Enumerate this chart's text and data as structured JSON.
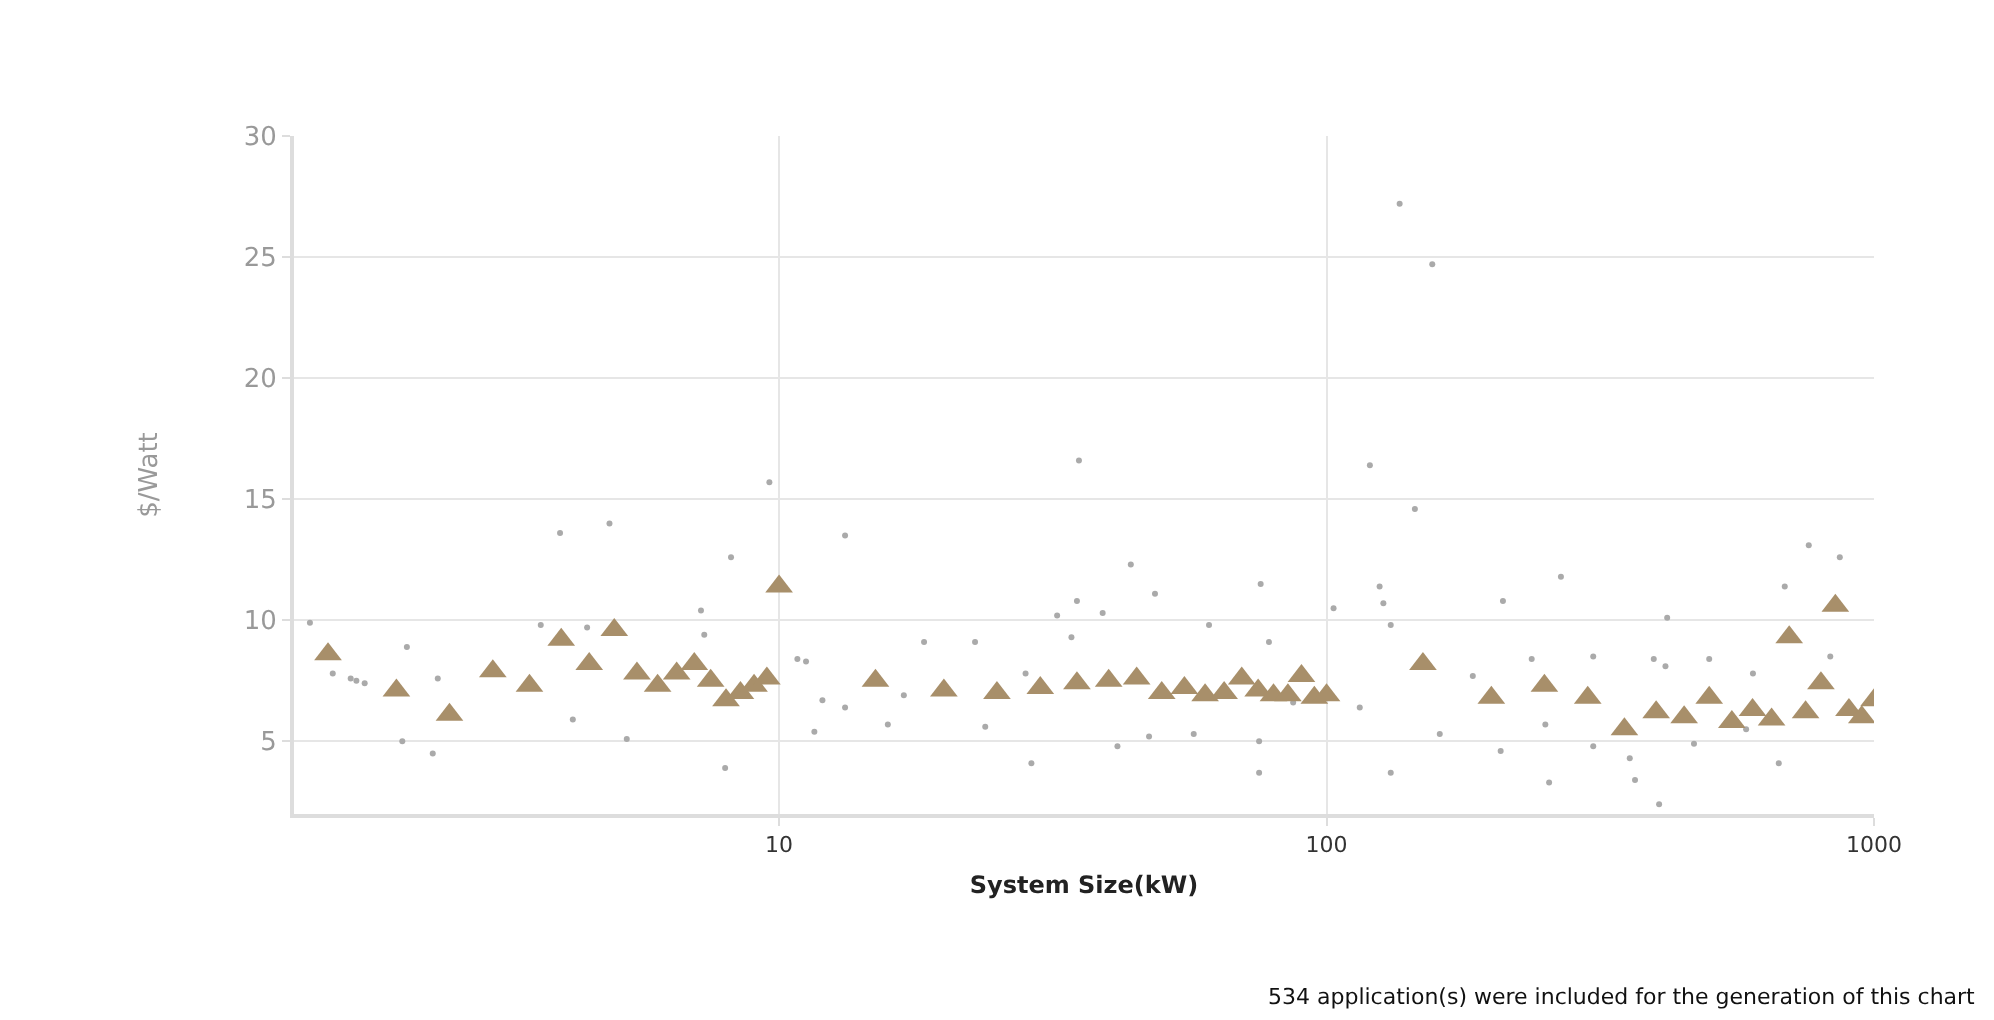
{
  "chart_data": {
    "type": "scatter",
    "xlabel": "System Size(kW)",
    "ylabel": "$/Watt",
    "log": "x",
    "grid": true,
    "marker": "triangle",
    "xlim": [
      1.3,
      1000
    ],
    "xticks": [
      10,
      100,
      1000
    ],
    "ylim": [
      2,
      30
    ],
    "yticks": [
      5,
      10,
      15,
      20,
      25,
      30
    ],
    "annotations": [
      "534 application(s) were included for the generation of this chart"
    ],
    "series": [
      {
        "color": "#aaaaaa",
        "marker": "circle",
        "x": [
          136,
          156,
          35.3,
          120,
          9.6,
          3.98,
          4.9,
          13.2,
          145,
          760,
          1.39,
          1.53,
          1.65,
          1.69,
          1.75,
          2.09,
          2.38,
          2.33,
          2.05,
          3.67,
          4.46,
          4.2,
          5.27,
          7.2,
          7.3,
          7.97,
          8.17,
          10.8,
          11.2,
          11.6,
          43.9,
          48.6,
          75.8,
          35,
          32.2,
          39,
          34.2,
          18.4,
          22.8,
          61,
          78.5,
          28.9,
          75.3,
          41.5,
          12,
          13.2,
          15.8,
          23.8,
          47.4,
          57.2,
          75.3,
          86.9,
          16.9,
          28.2,
          125,
          127,
          131,
          103,
          268,
          210,
          419,
          687,
          866,
          131,
          208,
          255,
          405,
          670,
          366,
          251,
          161,
          115,
          307,
          358,
          469,
          584,
          237,
          396,
          416,
          500,
          601,
          832,
          307,
          185
        ],
        "values": [
          27.2,
          24.7,
          16.6,
          16.4,
          15.7,
          13.6,
          14,
          13.5,
          14.6,
          13.1,
          9.9,
          7.8,
          7.6,
          7.5,
          7.4,
          8.9,
          7.6,
          4.5,
          5,
          9.8,
          9.7,
          5.9,
          5.1,
          10.4,
          9.4,
          3.9,
          12.6,
          8.4,
          8.3,
          5.4,
          12.3,
          11.1,
          11.5,
          10.8,
          10.2,
          10.3,
          9.3,
          9.1,
          9.1,
          9.8,
          9.1,
          4.1,
          3.7,
          4.8,
          6.7,
          6.4,
          5.7,
          5.6,
          5.2,
          5.3,
          5,
          6.6,
          6.9,
          7.8,
          11.4,
          10.7,
          9.8,
          10.5,
          11.8,
          10.8,
          10.1,
          11.4,
          12.6,
          3.7,
          4.6,
          3.3,
          2.4,
          4.1,
          3.4,
          5.7,
          5.3,
          6.4,
          4.8,
          4.3,
          4.9,
          5.5,
          8.4,
          8.4,
          8.1,
          8.4,
          7.8,
          8.5,
          8.5,
          7.7
        ]
      },
      {
        "color": "#a88f6a",
        "x": [
          1.5,
          2,
          2.5,
          3,
          3.5,
          4,
          4.5,
          5,
          5.5,
          6,
          6.5,
          7,
          7.5,
          8,
          8.5,
          9,
          9.5,
          10,
          15,
          20,
          25,
          30,
          35,
          40,
          45,
          50,
          55,
          60,
          65,
          70,
          75,
          80,
          85,
          90,
          95,
          100,
          150,
          200,
          250,
          300,
          350,
          400,
          450,
          500,
          550,
          600,
          650,
          700,
          750,
          800,
          850,
          900,
          950,
          1000
        ],
        "values": [
          8.6,
          7.1,
          6.1,
          7.9,
          7.3,
          9.2,
          8.2,
          9.6,
          7.8,
          7.3,
          7.8,
          8.2,
          7.5,
          6.7,
          7,
          7.3,
          7.6,
          11.4,
          7.5,
          7.1,
          7,
          7.2,
          7.4,
          7.5,
          7.6,
          7,
          7.2,
          6.9,
          7,
          7.6,
          7.1,
          6.9,
          6.9,
          7.7,
          6.8,
          6.9,
          8.2,
          6.8,
          7.3,
          6.8,
          5.5,
          6.2,
          6,
          6.8,
          5.8,
          6.3,
          5.9,
          9.3,
          6.2,
          7.4,
          10.6,
          6.3,
          6,
          6.7
        ]
      }
    ]
  }
}
